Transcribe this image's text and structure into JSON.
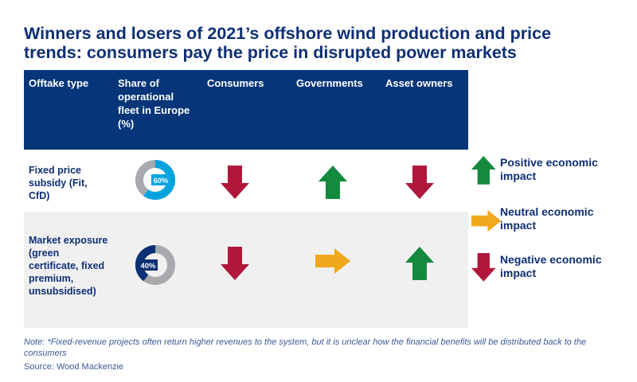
{
  "title": "Winners and losers of 2021’s offshore wind production and price trends: consumers pay the price in disrupted power markets",
  "headers": [
    "Offtake type",
    "Share of operational fleet in Europe (%)",
    "Consumers",
    "Governments",
    "Asset owners"
  ],
  "rows": [
    {
      "label": "Fixed price subsidy (Fit, CfD)",
      "share": 60,
      "share_label": "60%",
      "consumers": "negative",
      "governments": "positive",
      "asset_owners": "negative"
    },
    {
      "label": "Market exposure (green certificate, fixed premium, unsubsidised)",
      "share": 40,
      "share_label": "40%",
      "consumers": "negative",
      "governments": "neutral",
      "asset_owners": "positive"
    }
  ],
  "legend": [
    {
      "type": "positive",
      "label": "Positive economic impact"
    },
    {
      "type": "neutral",
      "label": "Neutral economic impact"
    },
    {
      "type": "negative",
      "label": "Negative economic impact"
    }
  ],
  "note": "Note: *Fixed-revenue projects often return higher revenues to the system, but it is unclear how the financial benefits will be distributed back to the consumers",
  "source": "Source: Wood Mackenzie",
  "colors": {
    "navy": "#06357a",
    "positive": "#138a3e",
    "neutral": "#f0a81c",
    "negative": "#b0173a",
    "share_fixed": "#00a3e0",
    "share_market": "#0a2f73",
    "remainder": "#a7a9ac"
  }
}
